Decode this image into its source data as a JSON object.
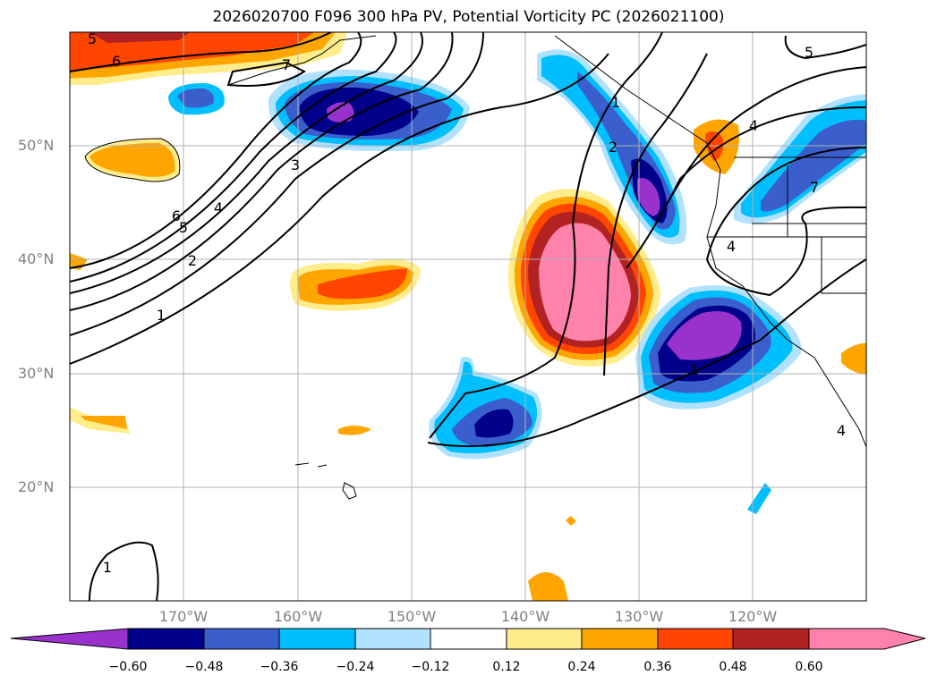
{
  "title": "2026020700 F096 300 hPa PV, Potential Vorticity PC (2026021100)",
  "lat_labels": [
    "50°N",
    "40°N",
    "30°N",
    "20°N"
  ],
  "lon_labels": [
    "170°W",
    "160°W",
    "150°W",
    "140°W",
    "130°W",
    "120°W"
  ],
  "colorbar": {
    "ticks": [
      "−0.60",
      "−0.48",
      "−0.36",
      "−0.24",
      "−0.12",
      "0.12",
      "0.24",
      "0.36",
      "0.48",
      "0.60"
    ],
    "colors": [
      "#9932cc",
      "#00008b",
      "#3a5fcd",
      "#00bfff",
      "#b0e2ff",
      "#ffffff",
      "#ffec8b",
      "#ffa500",
      "#ff4500",
      "#b22222",
      "#ff82ab"
    ]
  },
  "contour_labels": [
    "5",
    "6",
    "7",
    "3",
    "6",
    "5",
    "4",
    "2",
    "1",
    "2",
    "1",
    "4",
    "4",
    "5",
    "1",
    "7",
    "1",
    "4"
  ]
}
